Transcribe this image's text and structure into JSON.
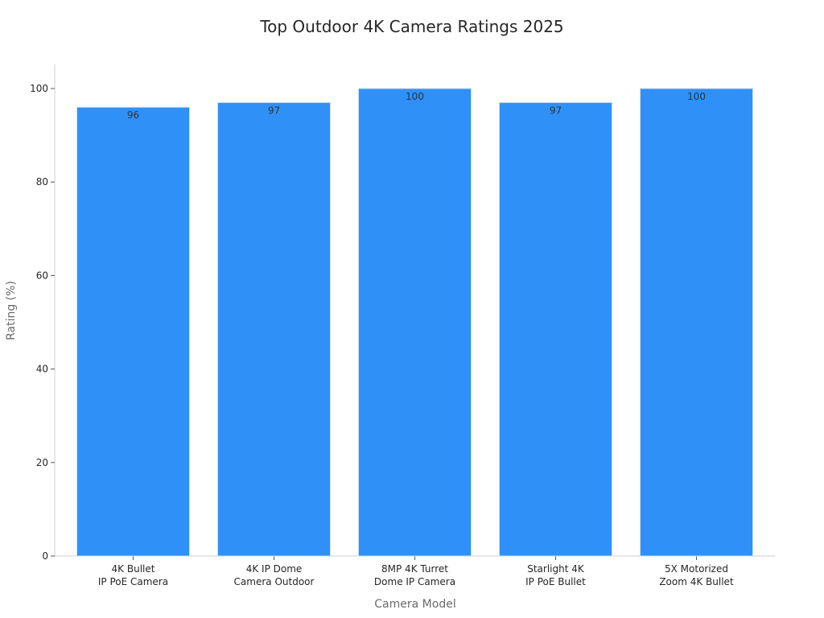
{
  "chart_data": {
    "type": "bar",
    "title": "Top Outdoor 4K Camera Ratings 2025",
    "xlabel": "Camera Model",
    "ylabel": "Rating (%)",
    "categories": [
      [
        "4K Bullet",
        "IP PoE Camera"
      ],
      [
        "4K IP Dome",
        "Camera Outdoor"
      ],
      [
        "8MP 4K Turret",
        "Dome IP Camera"
      ],
      [
        "Starlight 4K",
        "IP PoE Bullet"
      ],
      [
        "5X Motorized",
        "Zoom 4K Bullet"
      ]
    ],
    "values": [
      96,
      97,
      100,
      97,
      100
    ],
    "data_labels": [
      "96",
      "97",
      "100",
      "97",
      "100"
    ],
    "ylim": [
      0,
      105
    ],
    "yticks": [
      0,
      20,
      40,
      60,
      80,
      100
    ],
    "grid": false,
    "legend": "none",
    "bar_color": "#2f91f8",
    "bar_edge_color": "#c9dff7"
  }
}
